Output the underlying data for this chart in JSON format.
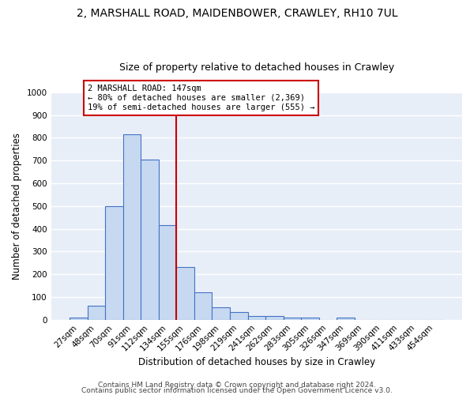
{
  "title1": "2, MARSHALL ROAD, MAIDENBOWER, CRAWLEY, RH10 7UL",
  "title2": "Size of property relative to detached houses in Crawley",
  "xlabel": "Distribution of detached houses by size in Crawley",
  "ylabel": "Number of detached properties",
  "categories": [
    "27sqm",
    "48sqm",
    "70sqm",
    "91sqm",
    "112sqm",
    "134sqm",
    "155sqm",
    "176sqm",
    "198sqm",
    "219sqm",
    "241sqm",
    "262sqm",
    "283sqm",
    "305sqm",
    "326sqm",
    "347sqm",
    "369sqm",
    "390sqm",
    "411sqm",
    "433sqm",
    "454sqm"
  ],
  "values": [
    10,
    60,
    500,
    815,
    705,
    415,
    230,
    120,
    55,
    35,
    15,
    15,
    10,
    10,
    0,
    10,
    0,
    0,
    0,
    0,
    0
  ],
  "bar_color": "#c6d9f1",
  "bar_edge_color": "#4472c4",
  "bar_linewidth": 0.8,
  "vline_x_index": 6,
  "vline_color": "#cc0000",
  "annotation_text": "2 MARSHALL ROAD: 147sqm\n← 80% of detached houses are smaller (2,369)\n19% of semi-detached houses are larger (555) →",
  "annotation_box_color": "#ffffff",
  "annotation_box_edge": "#cc0000",
  "ylim": [
    0,
    1000
  ],
  "yticks": [
    0,
    100,
    200,
    300,
    400,
    500,
    600,
    700,
    800,
    900,
    1000
  ],
  "bg_color": "#e8eef8",
  "grid_color": "#ffffff",
  "footer1": "Contains HM Land Registry data © Crown copyright and database right 2024.",
  "footer2": "Contains public sector information licensed under the Open Government Licence v3.0.",
  "title1_fontsize": 10,
  "title2_fontsize": 9,
  "xlabel_fontsize": 8.5,
  "ylabel_fontsize": 8.5,
  "tick_fontsize": 7.5,
  "footer_fontsize": 6.5
}
